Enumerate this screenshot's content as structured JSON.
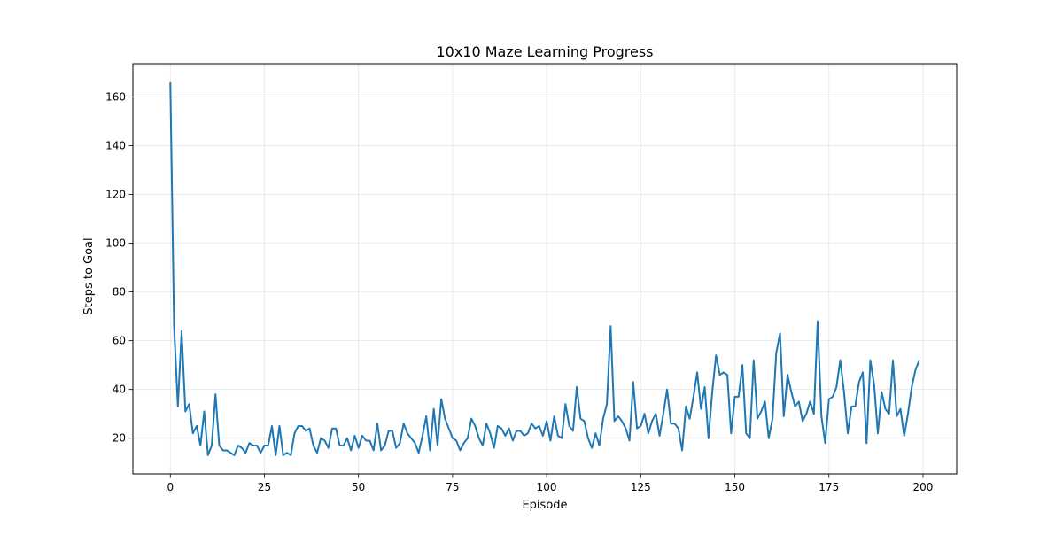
{
  "chart_data": {
    "type": "line",
    "title": "10x10 Maze Learning Progress",
    "xlabel": "Episode",
    "ylabel": "Steps to Goal",
    "xlim": [
      -9.95,
      208.95
    ],
    "ylim": [
      5.35,
      173.65
    ],
    "xticks": [
      0,
      25,
      50,
      75,
      100,
      125,
      150,
      175,
      200
    ],
    "yticks": [
      20,
      40,
      60,
      80,
      100,
      120,
      140,
      160
    ],
    "grid": true,
    "series": [
      {
        "color": "#1f77b4",
        "x_start": 0,
        "values": [
          166,
          66,
          33,
          64,
          31,
          34,
          22,
          25,
          17,
          31,
          13,
          17,
          38,
          17,
          15,
          15,
          14,
          13,
          17,
          16,
          14,
          18,
          17,
          17,
          14,
          17,
          17,
          25,
          13,
          25,
          13,
          14,
          13,
          22,
          25,
          25,
          23,
          24,
          17,
          14,
          20,
          19,
          16,
          24,
          24,
          17,
          17,
          20,
          15,
          21,
          16,
          21,
          19,
          19,
          15,
          26,
          15,
          17,
          23,
          23,
          16,
          18,
          26,
          22,
          20,
          18,
          14,
          21,
          29,
          15,
          32,
          17,
          36,
          28,
          24,
          20,
          19,
          15,
          18,
          20,
          28,
          25,
          20,
          17,
          26,
          22,
          16,
          25,
          24,
          21,
          24,
          19,
          23,
          23,
          21,
          22,
          26,
          24,
          25,
          21,
          27,
          19,
          29,
          21,
          20,
          34,
          25,
          23,
          41,
          28,
          27,
          20,
          16,
          22,
          17,
          28,
          34,
          66,
          27,
          29,
          27,
          24,
          19,
          43,
          24,
          25,
          30,
          22,
          27,
          30,
          21,
          30,
          40,
          26,
          26,
          24,
          15,
          33,
          28,
          37,
          47,
          32,
          41,
          20,
          39,
          54,
          46,
          47,
          46,
          22,
          37,
          37,
          50,
          22,
          20,
          52,
          28,
          31,
          35,
          20,
          28,
          55,
          63,
          29,
          46,
          39,
          33,
          35,
          27,
          30,
          35,
          30,
          68,
          29,
          18,
          36,
          37,
          41,
          52,
          39,
          22,
          33,
          33,
          43,
          47,
          18,
          52,
          42,
          22,
          39,
          32,
          30,
          52,
          29,
          32,
          21,
          30,
          41,
          48,
          52
        ]
      }
    ]
  }
}
